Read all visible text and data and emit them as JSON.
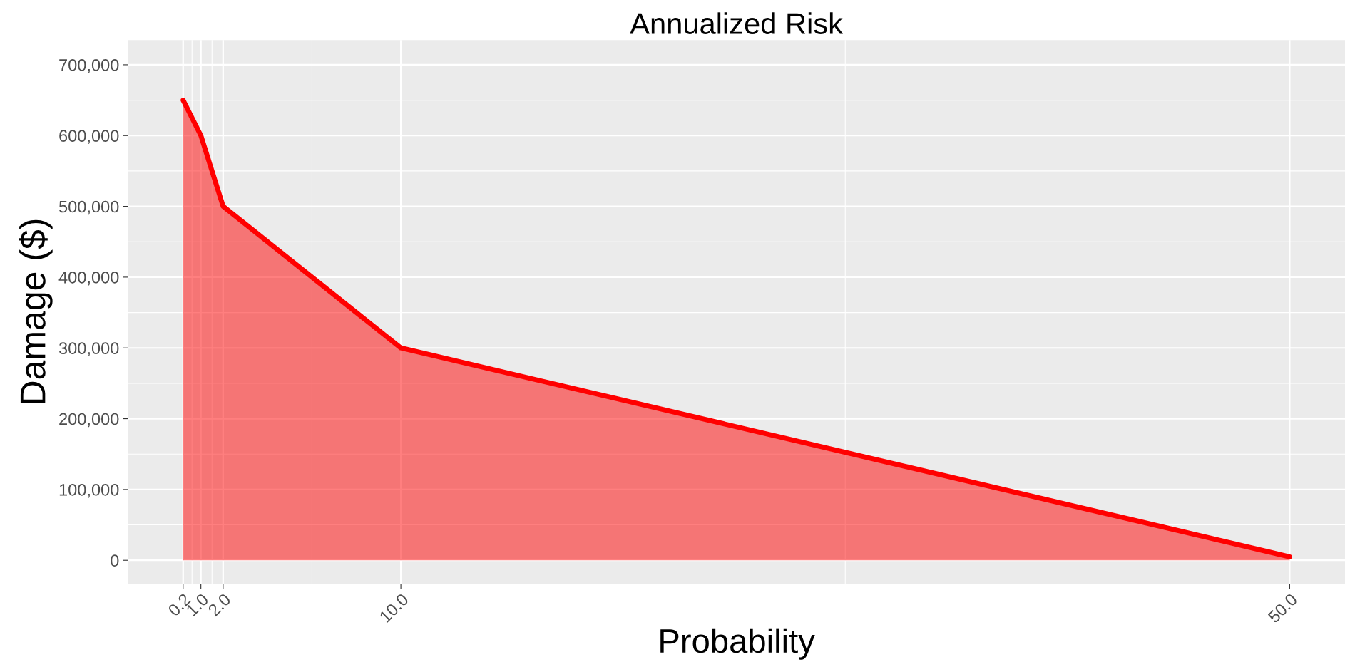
{
  "chart_data": {
    "type": "area",
    "title": "Annualized Risk",
    "xlabel": "Probability",
    "ylabel": "Damage ($)",
    "x": [
      0.2,
      1.0,
      2.0,
      10.0,
      50.0
    ],
    "series": [
      {
        "color": "#ff0000",
        "values": [
          650000,
          600000,
          500000,
          300000,
          5000
        ]
      }
    ],
    "xlim": [
      -2.29,
      52.49
    ],
    "ylim": [
      -33000,
      735000
    ],
    "xticks": [
      {
        "value": 0.2,
        "label": "0.2"
      },
      {
        "value": 1.0,
        "label": "1.0"
      },
      {
        "value": 2.0,
        "label": "2.0"
      },
      {
        "value": 10.0,
        "label": "10.0"
      },
      {
        "value": 50.0,
        "label": "50.0"
      }
    ],
    "yticks": [
      0,
      {
        "value": 100000,
        "label": "100,000"
      },
      {
        "value": 200000,
        "label": "200,000"
      },
      {
        "value": 300000,
        "label": "300,000"
      },
      {
        "value": 400000,
        "label": "400,000"
      },
      {
        "value": 500000,
        "label": "500,000"
      },
      {
        "value": 600000,
        "label": "600,000"
      },
      {
        "value": 700000,
        "label": "700,000"
      }
    ],
    "grid": true,
    "legend": false
  }
}
